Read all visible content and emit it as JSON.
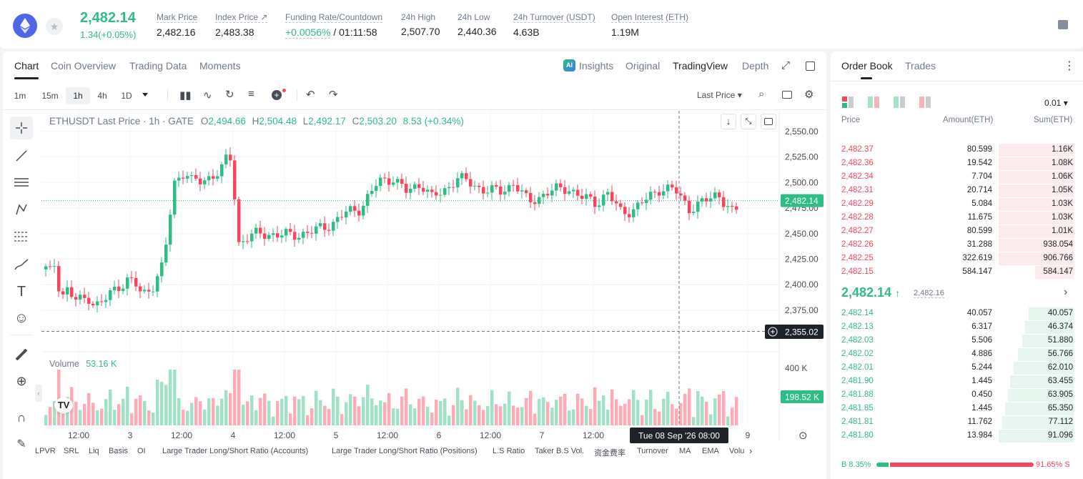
{
  "header": {
    "last_price": "2,482.14",
    "change": "1.34(+0.05%)",
    "stats": [
      {
        "label": "Mark Price",
        "value": "2,482.16"
      },
      {
        "label": "Index Price ↗",
        "value": "2,483.38"
      },
      {
        "label": "Funding Rate/Countdown",
        "value": "+0.0056%",
        "value2": " / 01:11:58"
      },
      {
        "label": "24h High",
        "value": "2,507.70"
      },
      {
        "label": "24h Low",
        "value": "2,440.36"
      },
      {
        "label": "24h Turnover (USDT)",
        "value": "4.63B"
      },
      {
        "label": "Open Interest (ETH)",
        "value": "1.19M"
      }
    ]
  },
  "chart_tabs": [
    "Chart",
    "Coin Overview",
    "Trading Data",
    "Moments"
  ],
  "chart_tabs_right": [
    "Insights",
    "Original",
    "TradingView",
    "Depth"
  ],
  "timeframes": [
    "1m",
    "15m",
    "1h",
    "4h",
    "1D"
  ],
  "price_type": "Last Price",
  "legend": {
    "symbol": "ETHUSDT Last Price · 1h · GATE",
    "o": "2,494.66",
    "h": "2,504.48",
    "l": "2,492.17",
    "c": "2,503.20",
    "chg": "8.53 (+0.34%)"
  },
  "volume": {
    "label": "Volume",
    "value": "53.16 K",
    "axis_top": "400 K",
    "last": "198.52 K"
  },
  "price_axis": [
    "2,550.00",
    "2,525.00",
    "2,500.00",
    "2,475.00",
    "2,450.00",
    "2,425.00",
    "2,400.00",
    "2,375.00"
  ],
  "price_marker": "2,482.14",
  "crosshair_price": "2,355.02",
  "crosshair_time": "Tue 08 Sep '26   08:00",
  "time_axis": [
    "12:00",
    "3",
    "12:00",
    "4",
    "12:00",
    "5",
    "12:00",
    "6",
    "12:00",
    "7",
    "12:00",
    "9"
  ],
  "bottom_indicators": [
    "LPVR",
    "SRL",
    "Liq",
    "Basis",
    "OI",
    "Large Trader Long/Short Ratio (Accounts)",
    "Large Trader Long/Short Ratio (Positions)",
    "L.S Ratio",
    "Taker B.S Vol.",
    "资金费率",
    "Turnover",
    "MA",
    "EMA",
    "Volu"
  ],
  "orderbook": {
    "tabs": [
      "Order Book",
      "Trades"
    ],
    "precision": "0.01",
    "headers": [
      "Price",
      "Amount(ETH)",
      "Sum(ETH)"
    ],
    "asks": [
      {
        "price": "2,482.37",
        "amount": "80.599",
        "sum": "1.16K",
        "depth": 1.0
      },
      {
        "price": "2,482.36",
        "amount": "19.542",
        "sum": "1.08K",
        "depth": 1.0
      },
      {
        "price": "2,482.34",
        "amount": "7.704",
        "sum": "1.06K",
        "depth": 1.0
      },
      {
        "price": "2,482.31",
        "amount": "20.714",
        "sum": "1.05K",
        "depth": 1.0
      },
      {
        "price": "2,482.29",
        "amount": "5.084",
        "sum": "1.03K",
        "depth": 1.0
      },
      {
        "price": "2,482.28",
        "amount": "11.675",
        "sum": "1.03K",
        "depth": 1.0
      },
      {
        "price": "2,482.27",
        "amount": "80.599",
        "sum": "1.01K",
        "depth": 1.0
      },
      {
        "price": "2,482.26",
        "amount": "31.288",
        "sum": "938.054",
        "depth": 1.0
      },
      {
        "price": "2,482.25",
        "amount": "322.619",
        "sum": "906.766",
        "depth": 1.0
      },
      {
        "price": "2,482.15",
        "amount": "584.147",
        "sum": "584.147",
        "depth": 0.51
      }
    ],
    "mid_price": "2,482.14",
    "mid_arrow": "↑",
    "mark_price": "2,482.16",
    "bids": [
      {
        "price": "2,482.14",
        "amount": "40.057",
        "sum": "40.057",
        "depth": 0.6
      },
      {
        "price": "2,482.13",
        "amount": "6.317",
        "sum": "46.374",
        "depth": 0.65
      },
      {
        "price": "2,482.03",
        "amount": "5.506",
        "sum": "51.880",
        "depth": 0.69
      },
      {
        "price": "2,482.02",
        "amount": "4.886",
        "sum": "56.766",
        "depth": 0.74
      },
      {
        "price": "2,482.01",
        "amount": "5.244",
        "sum": "62.010",
        "depth": 0.8
      },
      {
        "price": "2,481.90",
        "amount": "1.445",
        "sum": "63.455",
        "depth": 0.85
      },
      {
        "price": "2,481.88",
        "amount": "0.450",
        "sum": "63.905",
        "depth": 0.88
      },
      {
        "price": "2,481.85",
        "amount": "1.445",
        "sum": "65.350",
        "depth": 0.91
      },
      {
        "price": "2,481.81",
        "amount": "11.762",
        "sum": "77.112",
        "depth": 0.95
      },
      {
        "price": "2,481.80",
        "amount": "13.984",
        "sum": "91.096",
        "depth": 1.0
      }
    ],
    "buy_pct": "B 8.35%",
    "sell_pct": "91.65% S",
    "buy_ratio": 0.0835
  },
  "colors": {
    "up": "#2ebd85",
    "down": "#f6465d",
    "text": "#1e2329",
    "muted": "#707a8a"
  }
}
